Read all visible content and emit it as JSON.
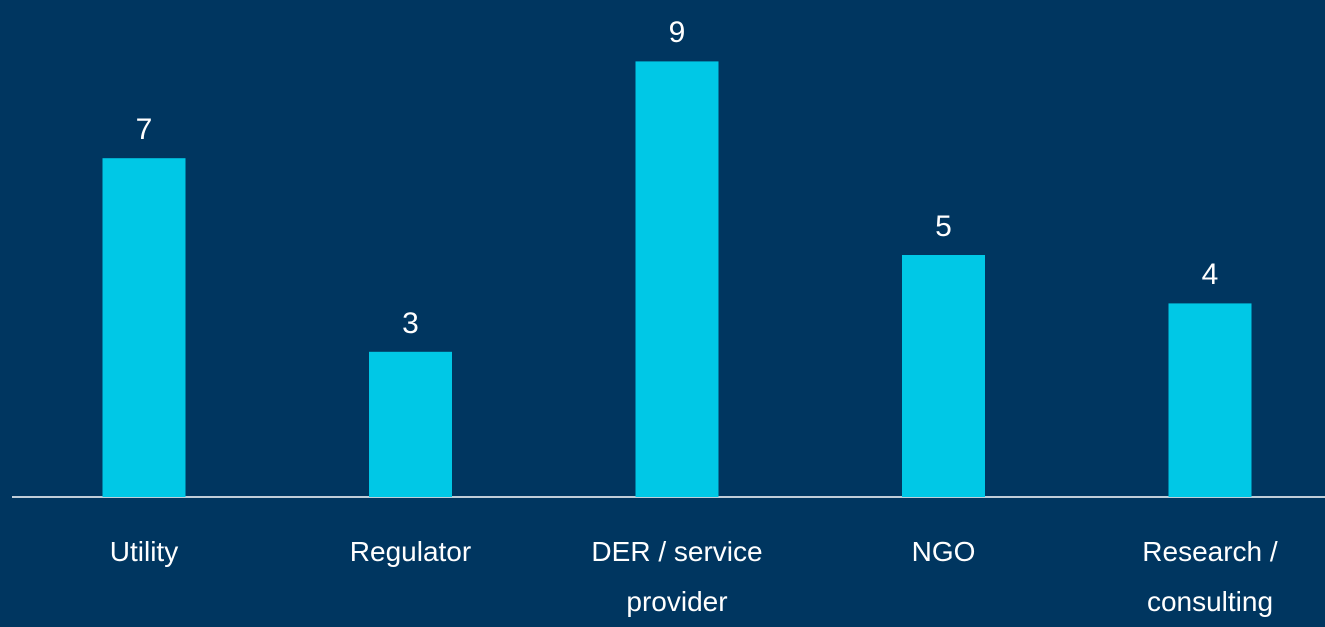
{
  "chart_data": {
    "type": "bar",
    "categories": [
      "Utility",
      "Regulator",
      "DER / service provider",
      "NGO",
      "Research / consulting"
    ],
    "values": [
      7,
      3,
      9,
      5,
      4
    ],
    "color": "#00c8e6"
  }
}
